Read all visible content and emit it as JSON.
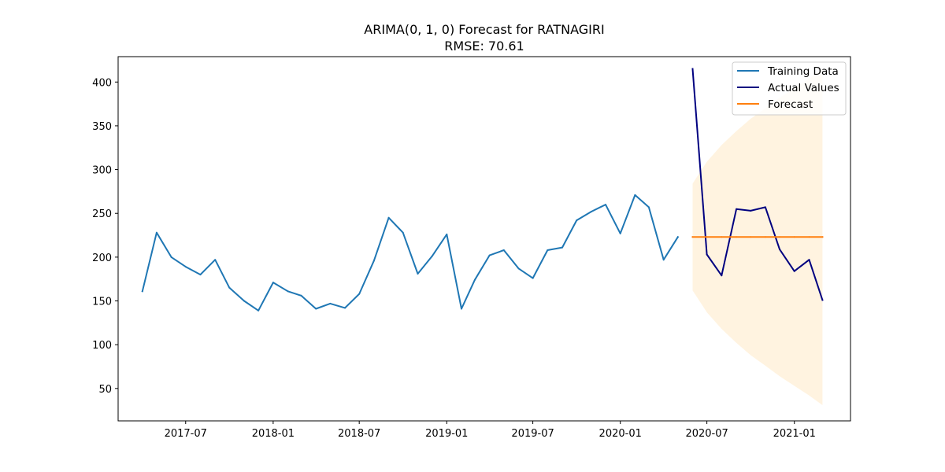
{
  "chart_data": {
    "type": "line",
    "title": "ARIMA(0, 1, 0) Forecast for RATNAGIRI",
    "subtitle": "RMSE: 70.61",
    "xlabel": "",
    "ylabel": "",
    "ylim": [
      13,
      429
    ],
    "xlim": [
      "2017-02-09",
      "2021-04-29"
    ],
    "grid": false,
    "legend_position": "top-right",
    "x_ticks": [
      "2017-07",
      "2018-01",
      "2018-07",
      "2019-01",
      "2019-07",
      "2020-01",
      "2020-07",
      "2021-01"
    ],
    "y_ticks": [
      50,
      100,
      150,
      200,
      250,
      300,
      350,
      400
    ],
    "series": [
      {
        "name": "Training Data",
        "color": "#1f77b4",
        "x": [
          "2017-04-01",
          "2017-05-01",
          "2017-06-01",
          "2017-07-01",
          "2017-08-01",
          "2017-09-01",
          "2017-10-01",
          "2017-11-01",
          "2017-12-01",
          "2018-01-01",
          "2018-02-01",
          "2018-03-01",
          "2018-04-01",
          "2018-05-01",
          "2018-06-01",
          "2018-07-01",
          "2018-08-01",
          "2018-09-01",
          "2018-10-01",
          "2018-11-01",
          "2018-12-01",
          "2019-01-01",
          "2019-02-01",
          "2019-03-01",
          "2019-04-01",
          "2019-05-01",
          "2019-06-01",
          "2019-07-01",
          "2019-08-01",
          "2019-09-01",
          "2019-10-01",
          "2019-11-01",
          "2019-12-01",
          "2020-01-01",
          "2020-02-01",
          "2020-03-01",
          "2020-04-01",
          "2020-05-01"
        ],
        "values": [
          161,
          228,
          200,
          189,
          180,
          197,
          165,
          150,
          139,
          171,
          161,
          156,
          141,
          147,
          142,
          158,
          196,
          245,
          228,
          181,
          201,
          226,
          141,
          174,
          202,
          208,
          187,
          176,
          208,
          211,
          242,
          252,
          260,
          227,
          271,
          257,
          197,
          223
        ]
      },
      {
        "name": "Actual Values",
        "color": "#000080",
        "x": [
          "2020-06-01",
          "2020-07-01",
          "2020-08-01",
          "2020-09-01",
          "2020-10-01",
          "2020-11-01",
          "2020-12-01",
          "2021-01-01",
          "2021-02-01",
          "2021-03-01"
        ],
        "values": [
          415,
          203,
          179,
          255,
          253,
          257,
          209,
          184,
          197,
          151
        ]
      },
      {
        "name": "Forecast",
        "color": "#ff7f0e",
        "x": [
          "2020-06-01",
          "2020-07-01",
          "2020-08-01",
          "2020-09-01",
          "2020-10-01",
          "2020-11-01",
          "2020-12-01",
          "2021-01-01",
          "2021-02-01",
          "2021-03-01"
        ],
        "values": [
          223,
          223,
          223,
          223,
          223,
          223,
          223,
          223,
          223,
          223
        ],
        "ci_lower": [
          162,
          137,
          118,
          102,
          88,
          76,
          64,
          53,
          42,
          31
        ],
        "ci_upper": [
          284,
          309,
          328,
          344,
          358,
          370,
          382,
          393,
          404,
          415
        ],
        "ci_color": "#fff3e0"
      }
    ]
  }
}
